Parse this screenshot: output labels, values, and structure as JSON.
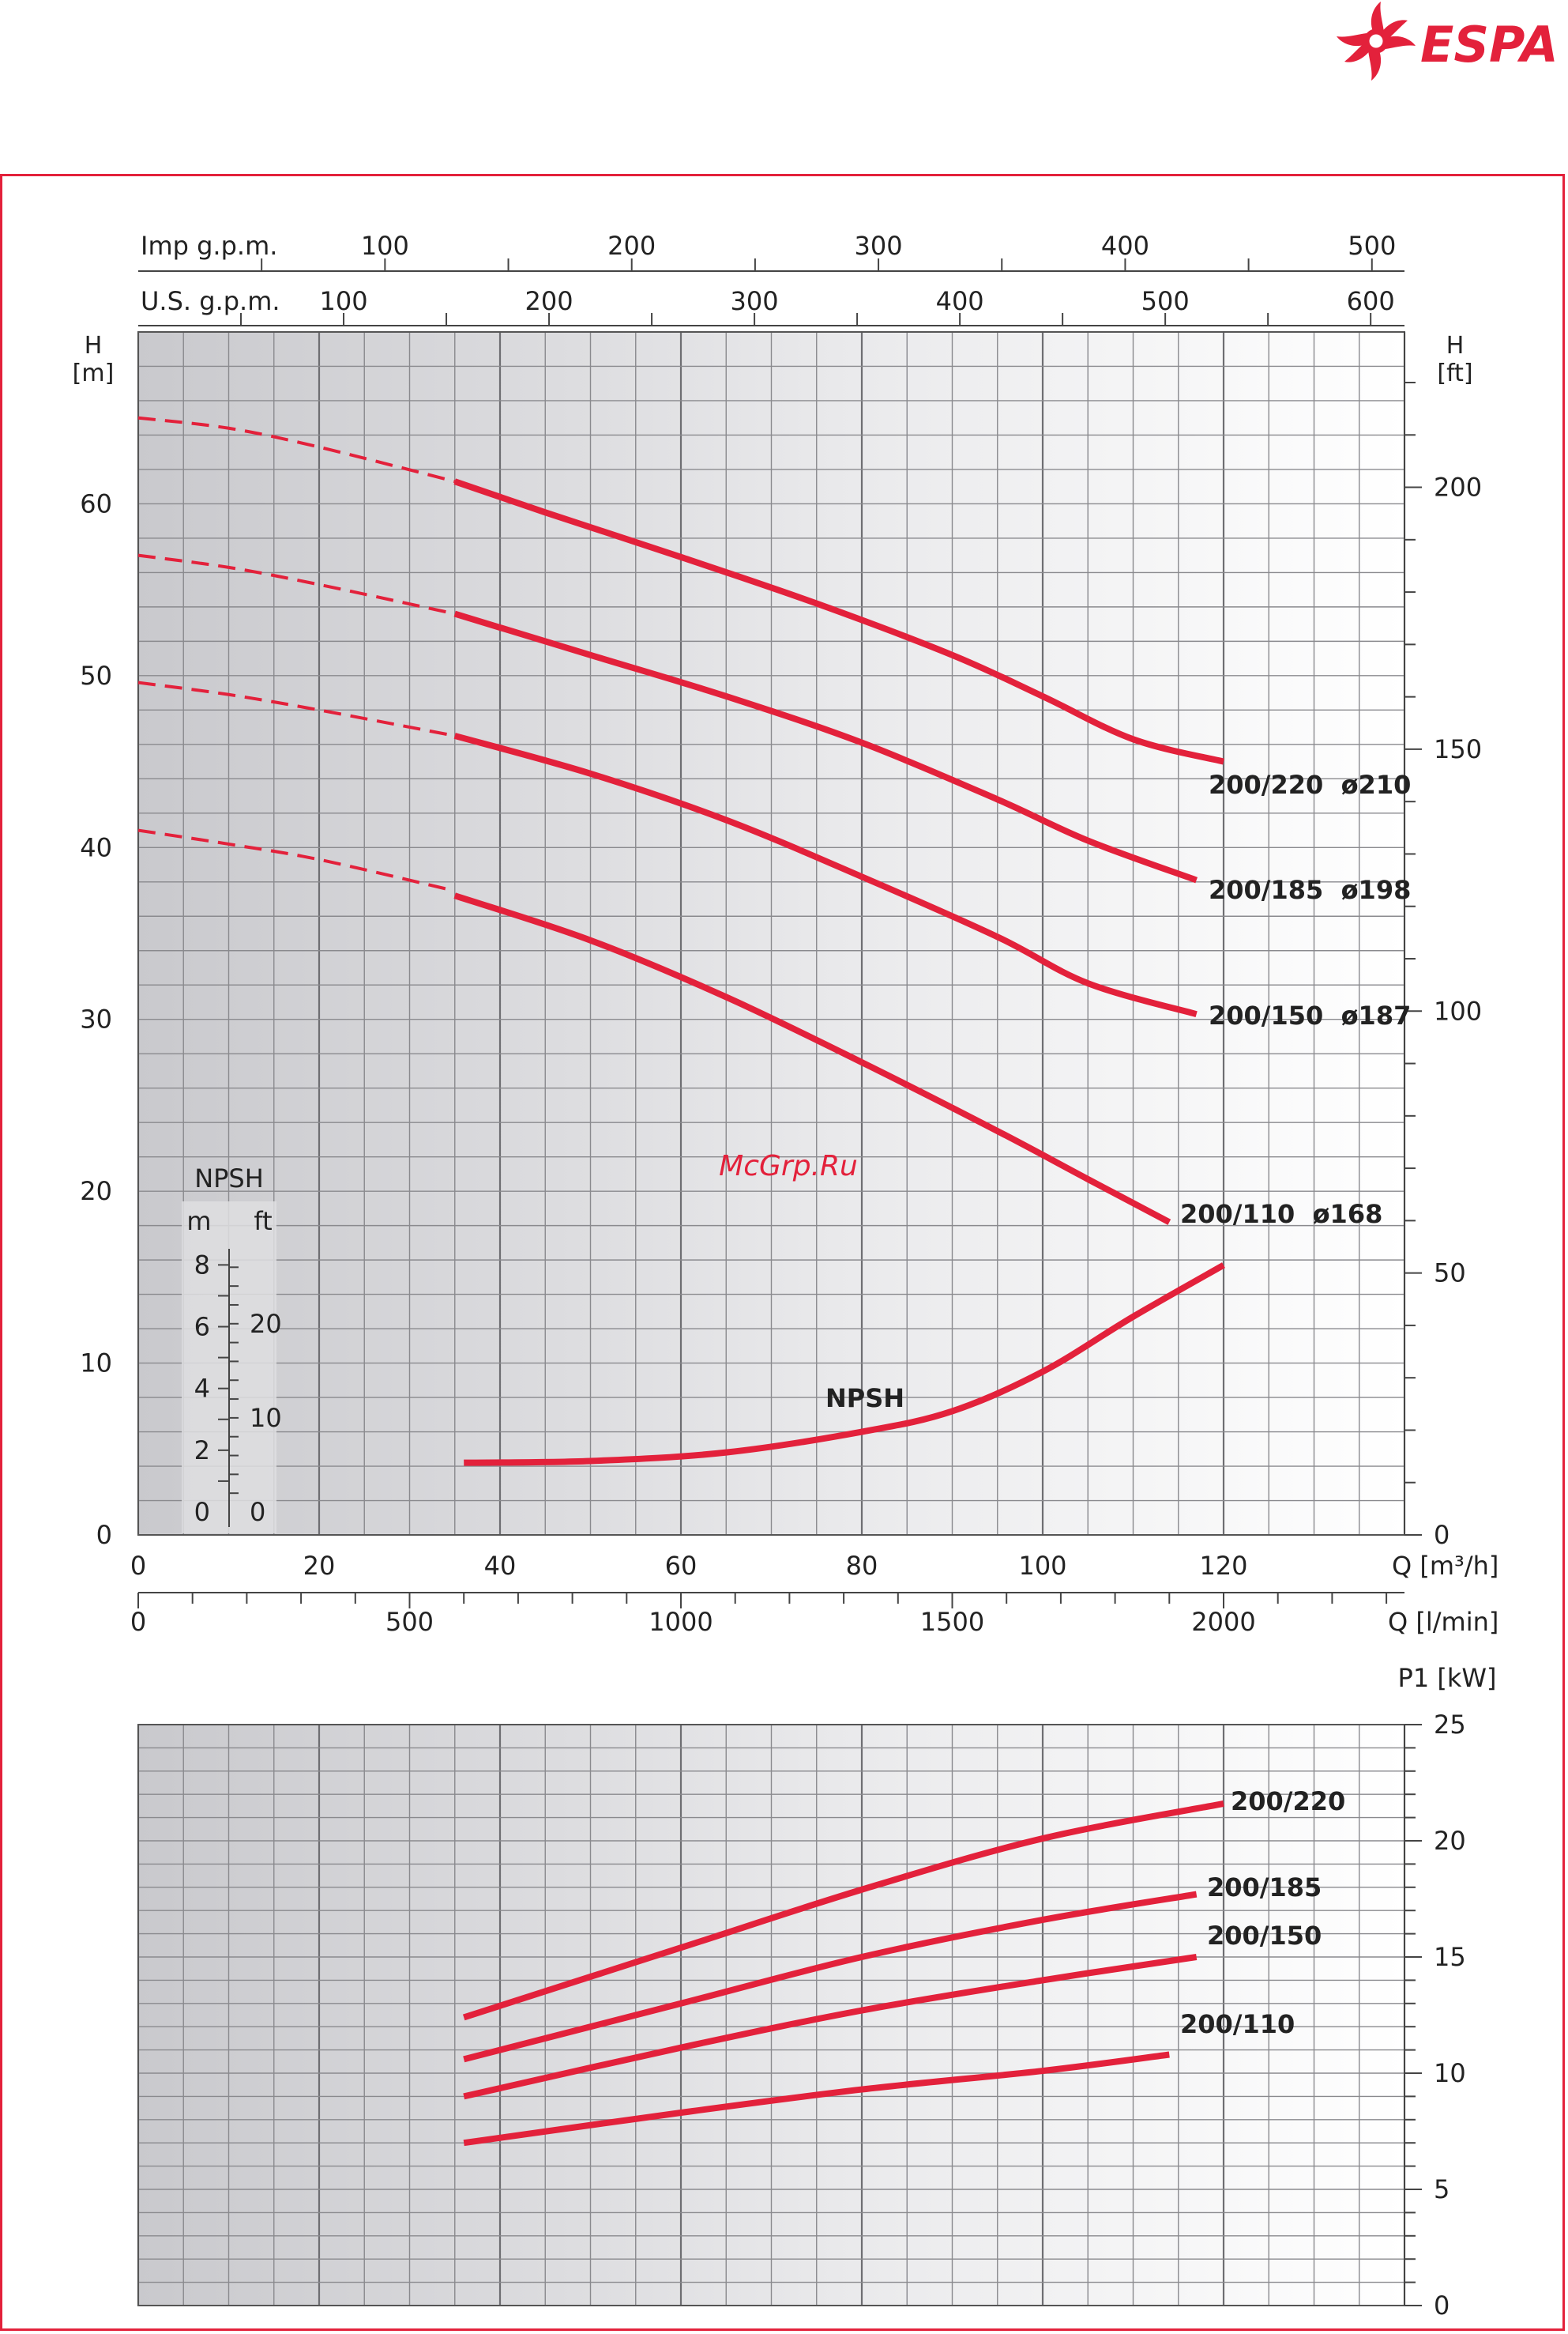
{
  "brand": {
    "name": "ESPA",
    "color": "#e3213b"
  },
  "watermark": "McGrp.Ru",
  "chart_data": [
    {
      "type": "line",
      "name": "head-curves",
      "ylabel_left": "H\n[m]",
      "ylabel_right": "H\n[ft]",
      "xlabel_main": "Q [m³/h]",
      "xlabel_lmin": "Q [l/min]",
      "xlabel_top1": "Imp g.p.m.",
      "xlabel_top2": "U.S. g.p.m.",
      "xlim": [
        0,
        140
      ],
      "ylim": [
        0,
        70
      ],
      "x_ticks": [
        "0",
        "20",
        "40",
        "60",
        "80",
        "100",
        "120"
      ],
      "y_ticks_m": [
        "0",
        "10",
        "20",
        "30",
        "40",
        "50",
        "60"
      ],
      "y_ticks_ft": [
        "0",
        "50",
        "100",
        "150",
        "200"
      ],
      "lmin_ticks": [
        "0",
        "500",
        "1000",
        "1500",
        "2000"
      ],
      "imp_gpm_ticks": [
        "100",
        "200",
        "300",
        "400",
        "500"
      ],
      "us_gpm_ticks": [
        "100",
        "200",
        "300",
        "400",
        "500",
        "600"
      ],
      "series": [
        {
          "name": "200/220  ø210",
          "dashed": [
            [
              0,
              65
            ],
            [
              10,
              64.4
            ],
            [
              20,
              63.3
            ],
            [
              35,
              61.3
            ]
          ],
          "solid": [
            [
              35,
              61.3
            ],
            [
              45,
              59.5
            ],
            [
              60,
              56.9
            ],
            [
              75,
              54.2
            ],
            [
              90,
              51.2
            ],
            [
              100,
              48.8
            ],
            [
              110,
              46.3
            ],
            [
              120,
              45
            ]
          ]
        },
        {
          "name": "200/185  ø198",
          "dashed": [
            [
              0,
              57
            ],
            [
              10,
              56.3
            ],
            [
              20,
              55.3
            ],
            [
              35,
              53.6
            ]
          ],
          "solid": [
            [
              35,
              53.6
            ],
            [
              50,
              51.2
            ],
            [
              65,
              48.8
            ],
            [
              80,
              46.1
            ],
            [
              95,
              42.8
            ],
            [
              105,
              40.4
            ],
            [
              117,
              38.1
            ]
          ]
        },
        {
          "name": "200/150  ø187",
          "dashed": [
            [
              0,
              49.6
            ],
            [
              10,
              48.9
            ],
            [
              20,
              48
            ],
            [
              35,
              46.5
            ]
          ],
          "solid": [
            [
              35,
              46.5
            ],
            [
              50,
              44.3
            ],
            [
              65,
              41.6
            ],
            [
              80,
              38.3
            ],
            [
              95,
              34.8
            ],
            [
              105,
              32.1
            ],
            [
              117,
              30.3
            ]
          ]
        },
        {
          "name": "200/110  ø168",
          "dashed": [
            [
              0,
              41
            ],
            [
              10,
              40.2
            ],
            [
              20,
              39.3
            ],
            [
              34,
              37.6
            ]
          ],
          "solid": [
            [
              35,
              37.2
            ],
            [
              50,
              34.6
            ],
            [
              65,
              31.3
            ],
            [
              80,
              27.5
            ],
            [
              95,
              23.5
            ],
            [
              105,
              20.7
            ],
            [
              114,
              18.2
            ]
          ]
        },
        {
          "name": "NPSH",
          "solid": [
            [
              36,
              4.2
            ],
            [
              50,
              4.3
            ],
            [
              65,
              4.8
            ],
            [
              80,
              6
            ],
            [
              90,
              7.2
            ],
            [
              100,
              9.5
            ],
            [
              110,
              12.7
            ],
            [
              120,
              15.7
            ]
          ]
        }
      ],
      "npsh_scale": {
        "title": "NPSH",
        "unit_m": "m",
        "unit_ft": "ft",
        "m_ticks": [
          "8",
          "6",
          "4",
          "2",
          "0"
        ],
        "ft_ticks": [
          "20",
          "10",
          "0"
        ]
      }
    },
    {
      "type": "line",
      "name": "power-curves",
      "ylabel": "P1 [kW]",
      "xlim": [
        0,
        140
      ],
      "ylim": [
        0,
        25
      ],
      "y_ticks": [
        "0",
        "5",
        "10",
        "15",
        "20",
        "25"
      ],
      "series": [
        {
          "name": "200/220",
          "points": [
            [
              36,
              12.4
            ],
            [
              60,
              15.4
            ],
            [
              80,
              17.9
            ],
            [
              100,
              20.1
            ],
            [
              120,
              21.6
            ]
          ]
        },
        {
          "name": "200/185",
          "points": [
            [
              36,
              10.6
            ],
            [
              60,
              13
            ],
            [
              80,
              15
            ],
            [
              100,
              16.6
            ],
            [
              117,
              17.7
            ]
          ]
        },
        {
          "name": "200/150",
          "points": [
            [
              36,
              9
            ],
            [
              60,
              11.1
            ],
            [
              80,
              12.7
            ],
            [
              100,
              14
            ],
            [
              117,
              15
            ]
          ]
        },
        {
          "name": "200/110",
          "points": [
            [
              36,
              7
            ],
            [
              60,
              8.3
            ],
            [
              80,
              9.3
            ],
            [
              100,
              10.1
            ],
            [
              114,
              10.8
            ]
          ]
        }
      ]
    }
  ]
}
